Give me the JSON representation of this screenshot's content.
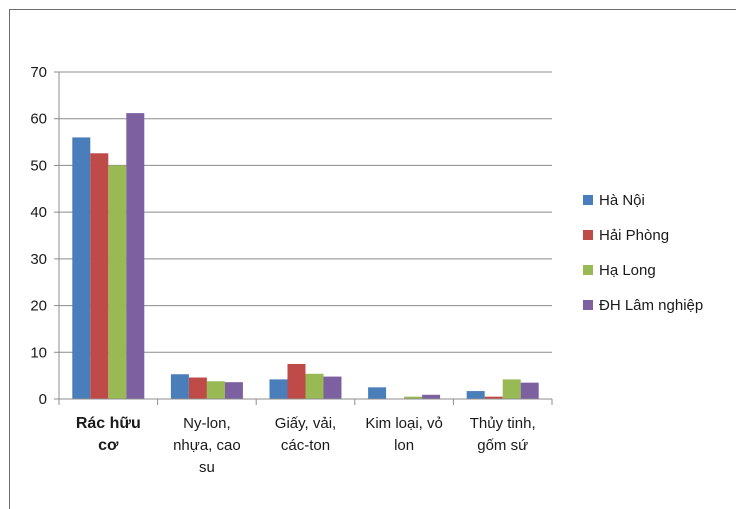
{
  "chart_data": {
    "type": "bar",
    "title": "",
    "xlabel": "",
    "ylabel": "",
    "ylim": [
      0,
      70
    ],
    "yticks": [
      0,
      10,
      20,
      30,
      40,
      50,
      60,
      70
    ],
    "grid": true,
    "legend_position": "right",
    "categories": [
      [
        "Rác hữu",
        "cơ"
      ],
      [
        "Ny-lon,",
        "nhựa, cao",
        "su"
      ],
      [
        "Giấy, vải,",
        "các-ton"
      ],
      [
        "Kim loại, vỏ",
        "lon"
      ],
      [
        "Thủy tinh,",
        "gốm sứ"
      ]
    ],
    "series": [
      {
        "name": "Hà Nội",
        "color": "#4a7ebb",
        "values": [
          56.0,
          5.3,
          4.2,
          2.5,
          1.7
        ]
      },
      {
        "name": "Hải Phòng",
        "color": "#be4b48",
        "values": [
          52.6,
          4.6,
          7.5,
          0.1,
          0.5
        ]
      },
      {
        "name": "Hạ Long",
        "color": "#98b954",
        "values": [
          50.0,
          3.8,
          5.4,
          0.5,
          4.2
        ]
      },
      {
        "name": "ĐH Lâm nghiệp",
        "color": "#7d60a0",
        "values": [
          61.2,
          3.6,
          4.8,
          0.9,
          3.5
        ]
      }
    ]
  }
}
